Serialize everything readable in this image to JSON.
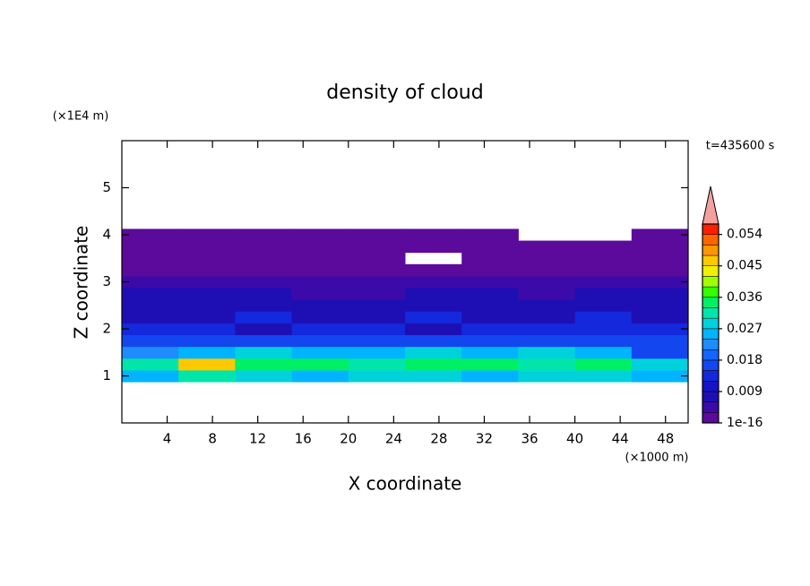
{
  "chart_data": {
    "type": "heatmap",
    "title": "density of cloud",
    "y_unit": "(×1E4 m)",
    "x_unit": "(×1000 m)",
    "annotation": "t=435600 s",
    "xlabel": "X coordinate",
    "ylabel": "Z coordinate",
    "xlim": [
      0,
      50
    ],
    "ylim": [
      0,
      6
    ],
    "xticks": [
      4,
      8,
      12,
      16,
      20,
      24,
      28,
      32,
      36,
      40,
      44,
      48
    ],
    "yticks": [
      1,
      2,
      3,
      4,
      5
    ],
    "x": [
      2.5,
      7.5,
      12.5,
      17.5,
      22.5,
      27.5,
      32.5,
      37.5,
      42.5,
      47.5
    ],
    "z": [
      1.0,
      1.25,
      1.5,
      1.75,
      2.0,
      2.25,
      2.5,
      2.75,
      3.0,
      3.25,
      3.5,
      3.75,
      4.0
    ],
    "values": [
      [
        0.024,
        0.03,
        0.028,
        0.026,
        0.027,
        0.028,
        0.026,
        0.027,
        0.029,
        0.024
      ],
      [
        0.03,
        0.045,
        0.036,
        0.033,
        0.03,
        0.036,
        0.033,
        0.03,
        0.036,
        0.027
      ],
      [
        0.021,
        0.024,
        0.027,
        0.024,
        0.024,
        0.027,
        0.024,
        0.027,
        0.024,
        0.018
      ],
      [
        0.015,
        0.018,
        0.015,
        0.018,
        0.015,
        0.015,
        0.018,
        0.015,
        0.018,
        0.015
      ],
      [
        0.012,
        0.012,
        0.009,
        0.012,
        0.012,
        0.009,
        0.012,
        0.012,
        0.012,
        0.012
      ],
      [
        0.009,
        0.009,
        0.012,
        0.009,
        0.009,
        0.012,
        0.009,
        0.009,
        0.012,
        0.009
      ],
      [
        0.006,
        0.009,
        0.006,
        0.006,
        0.006,
        0.006,
        0.009,
        0.006,
        0.006,
        0.009
      ],
      [
        0.006,
        0.006,
        0.006,
        0.003,
        0.003,
        0.006,
        0.006,
        0.003,
        0.006,
        0.006
      ],
      [
        0.003,
        0.003,
        0.003,
        0.003,
        0.003,
        0.003,
        0.003,
        0.003,
        0.003,
        0.003
      ],
      [
        0.002,
        0.002,
        0.002,
        0.002,
        0.002,
        0.001,
        0.002,
        0.002,
        0.002,
        0.002
      ],
      [
        0.001,
        0.001,
        0.001,
        0.001,
        0.001,
        null,
        0.001,
        0.001,
        0.001,
        0.001
      ],
      [
        0.001,
        0.001,
        0.001,
        0.001,
        0.001,
        0.001,
        0.001,
        0.001,
        0.001,
        0.001
      ],
      [
        0.001,
        0.001,
        0.001,
        0.001,
        0.001,
        0.001,
        0.001,
        null,
        null,
        0.001
      ]
    ],
    "colorbar": {
      "lim": [
        0,
        0.057
      ],
      "ticks": [
        1e-16,
        0.009,
        0.018,
        0.027,
        0.036,
        0.045,
        0.054
      ],
      "colors": [
        "#5b0a9c",
        "#3c0aa8",
        "#1e0fb4",
        "#1414c8",
        "#1428dc",
        "#1446f0",
        "#1464ff",
        "#1e8cff",
        "#00b4ff",
        "#00d2dc",
        "#00e6aa",
        "#00f064",
        "#32ff00",
        "#a0ff00",
        "#f0f000",
        "#ffc800",
        "#ff9600",
        "#ff6400",
        "#ff1e00"
      ],
      "over_color": "#f4a0a0"
    }
  }
}
